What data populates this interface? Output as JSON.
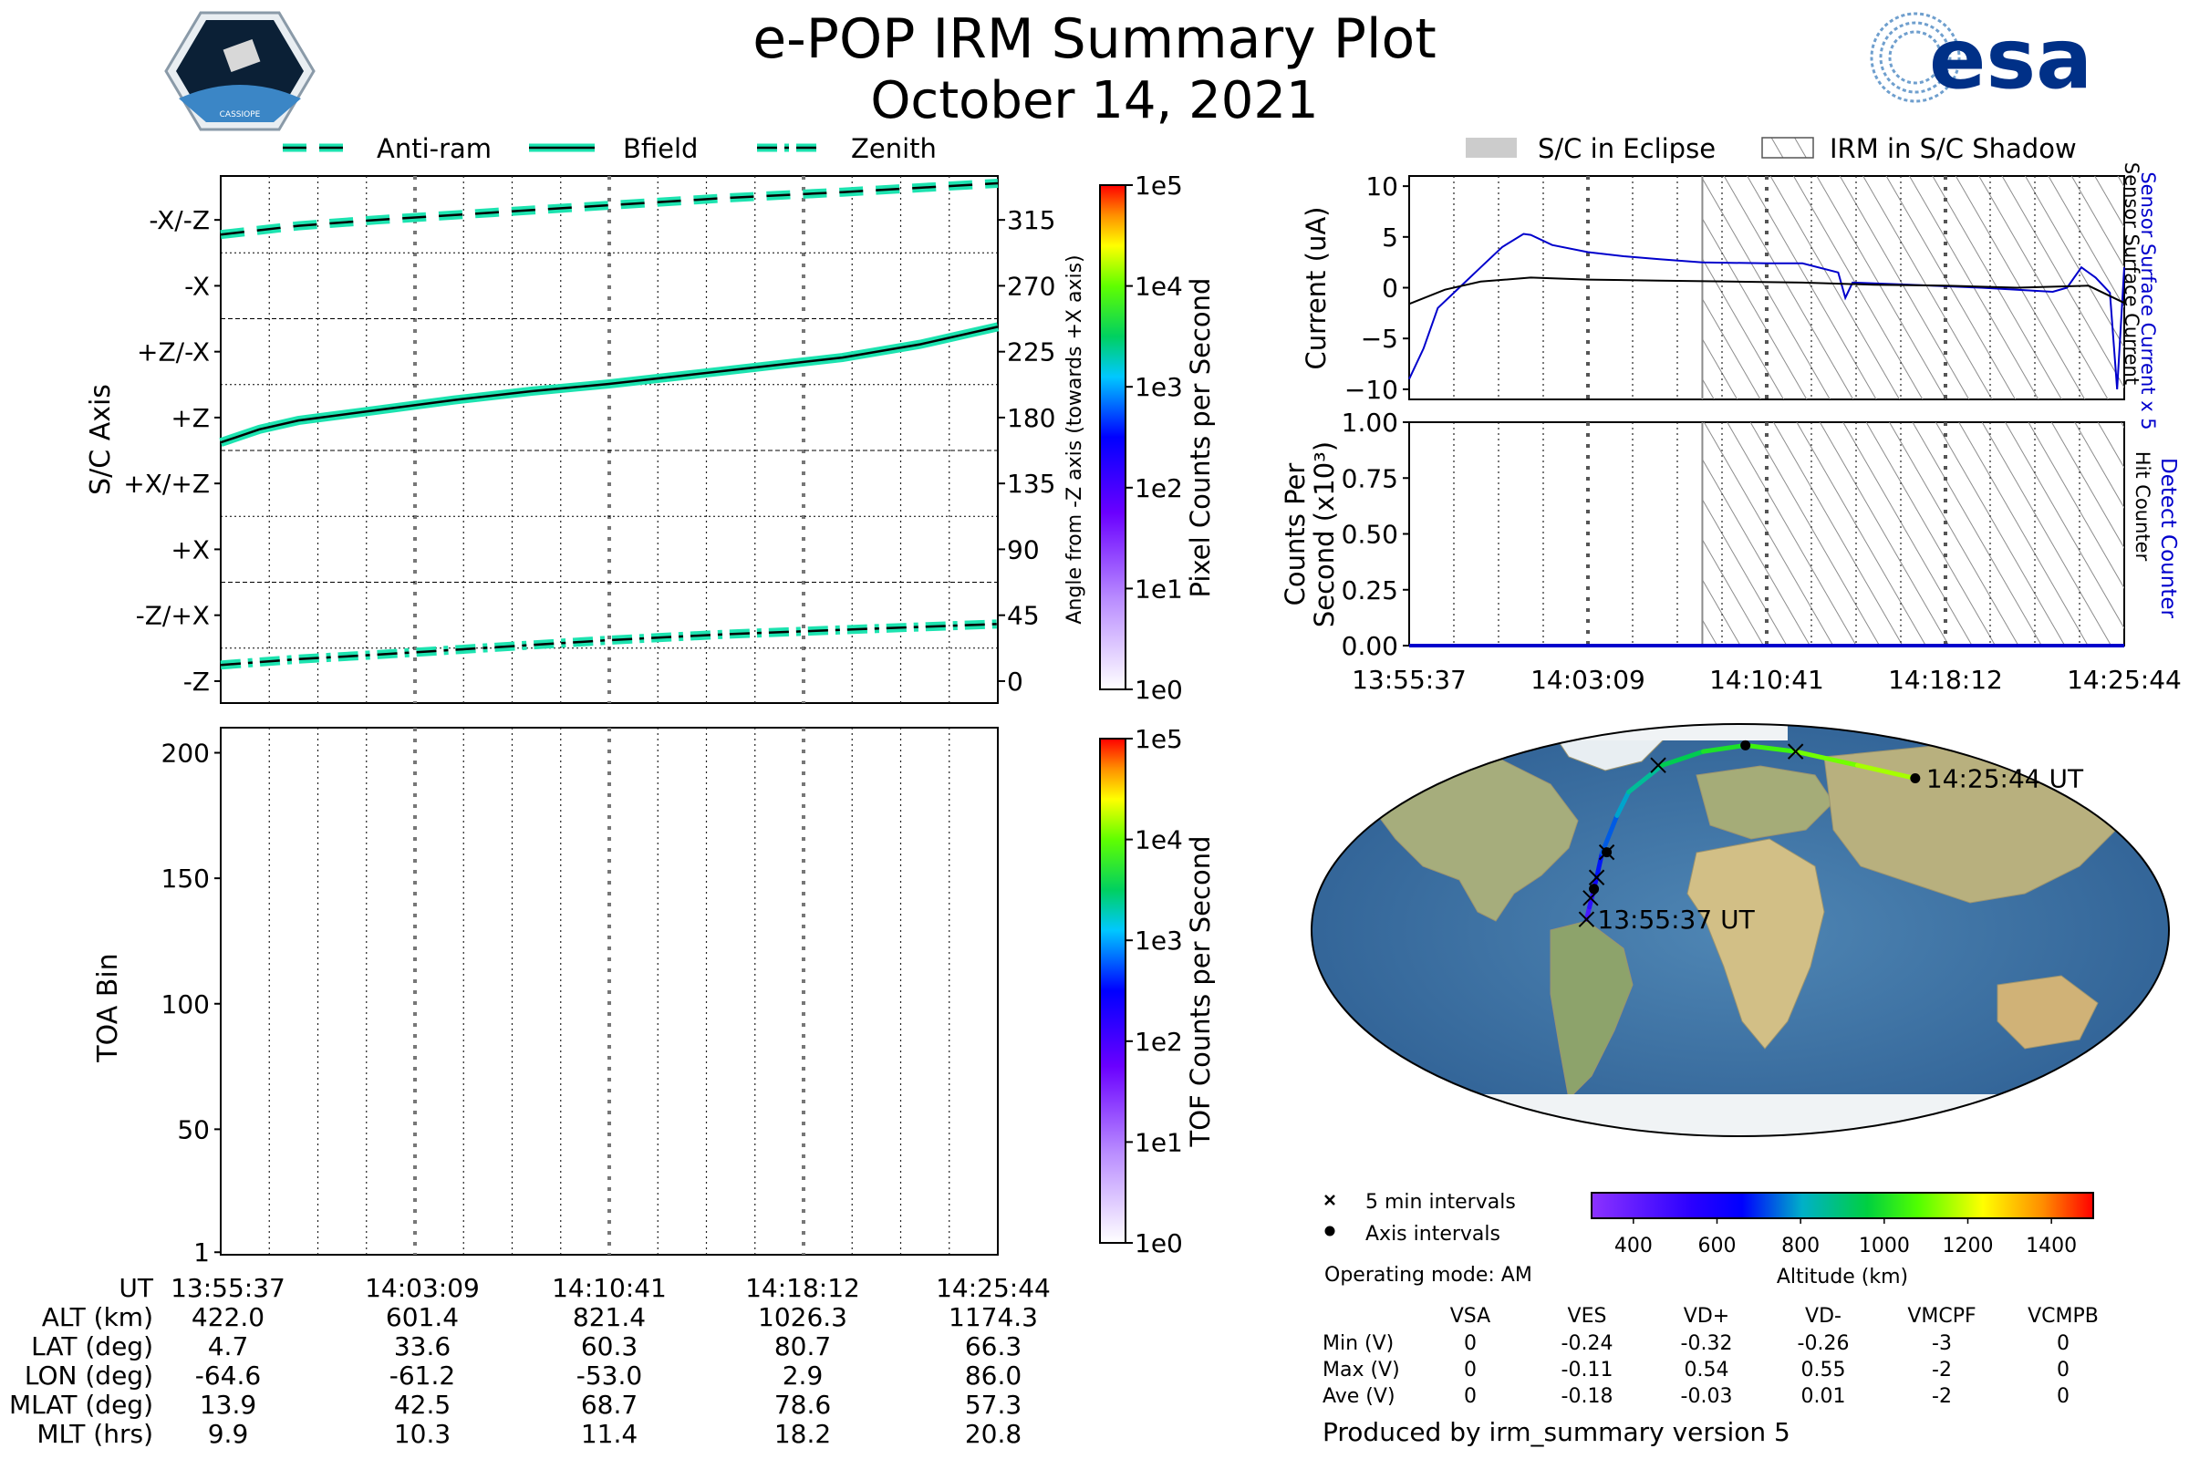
{
  "header": {
    "title": "e-POP IRM Summary Plot",
    "date": "October 14, 2021",
    "logo_left_text": "CASSIOPE",
    "logo_right_text": "esa"
  },
  "legend_top_left": [
    {
      "label": "Anti-ram",
      "style": "dashed"
    },
    {
      "label": "Bfield",
      "style": "solid"
    },
    {
      "label": "Zenith",
      "style": "dashdot"
    }
  ],
  "legend_top_right": [
    {
      "label": "S/C in Eclipse"
    },
    {
      "label": "IRM in S/C Shadow"
    }
  ],
  "colors": {
    "trace_fill": "#1de3b0",
    "sensor_current_x5": "#0000cc",
    "surface_current": "#000000",
    "shadow_hatch": "#8c8c8c",
    "eclipse_gray": "#cccccc"
  },
  "footer": {
    "ut_labels": [
      "UT",
      "ALT (km)",
      "LAT (deg)",
      "LON (deg)",
      "MLAT (deg)",
      "MLT (hrs)"
    ],
    "columns": [
      [
        "13:55:37",
        "422.0",
        "4.7",
        "-64.6",
        "13.9",
        "9.9"
      ],
      [
        "14:03:09",
        "601.4",
        "33.6",
        "-61.2",
        "42.5",
        "10.3"
      ],
      [
        "14:10:41",
        "821.4",
        "60.3",
        "-53.0",
        "68.7",
        "11.4"
      ],
      [
        "14:18:12",
        "1026.3",
        "80.7",
        "2.9",
        "78.6",
        "18.2"
      ],
      [
        "14:25:44",
        "1174.3",
        "66.3",
        "86.0",
        "57.3",
        "20.8"
      ]
    ],
    "map_legend": {
      "five_min": "5 min intervals",
      "axis": "Axis intervals"
    },
    "altitude_colorbar": {
      "label": "Altitude (km)",
      "ticks": [
        "400",
        "600",
        "800",
        "1000",
        "1200",
        "1400"
      ]
    },
    "operating_mode": "Operating mode: AM",
    "voltage_table": {
      "headers": [
        "VSA",
        "VES",
        "VD+",
        "VD-",
        "VMCPF",
        "VCMPB"
      ],
      "rows": [
        {
          "label": "Min (V)",
          "values": [
            "0",
            "-0.24",
            "-0.32",
            "-0.26",
            "-3",
            "0"
          ]
        },
        {
          "label": "Max (V)",
          "values": [
            "0",
            "-0.11",
            "0.54",
            "0.55",
            "-2",
            "0"
          ]
        },
        {
          "label": "Ave (V)",
          "values": [
            "0",
            "-0.18",
            "-0.03",
            "0.01",
            "-2",
            "0"
          ]
        }
      ]
    },
    "produced_by": "Produced by irm_summary version 5"
  },
  "chart_data": [
    {
      "type": "line",
      "panel": "sc_axis",
      "ylabel": "S/C Axis",
      "y2label": "Angle from -Z axis (towards +X axis)",
      "ylim": [
        -15,
        345
      ],
      "ytick_labels": [
        "-X/-Z",
        "-X",
        "+Z/-X",
        "+Z",
        "+X/+Z",
        "+X",
        "-Z/+X",
        "-Z"
      ],
      "y2ticks": [
        0,
        45,
        90,
        135,
        180,
        225,
        270,
        315
      ],
      "x_ticks": [
        "13:55:37",
        "14:03:09",
        "14:10:41",
        "14:18:12",
        "14:25:44"
      ],
      "series": [
        {
          "name": "Anti-ram",
          "x": [
            0,
            0.1,
            0.2,
            0.35,
            0.5,
            0.65,
            0.8,
            1.0
          ],
          "y": [
            305,
            311,
            315,
            320,
            325,
            330,
            334,
            340
          ]
        },
        {
          "name": "Bfield",
          "x": [
            0,
            0.05,
            0.1,
            0.2,
            0.3,
            0.4,
            0.5,
            0.6,
            0.7,
            0.8,
            0.9,
            1.0
          ],
          "y": [
            163,
            172,
            178,
            185,
            192,
            198,
            203,
            209,
            215,
            221,
            230,
            242
          ]
        },
        {
          "name": "Zenith",
          "x": [
            0,
            0.1,
            0.2,
            0.35,
            0.5,
            0.65,
            0.8,
            1.0
          ],
          "y": [
            11,
            15,
            18,
            23,
            28,
            32,
            35,
            39
          ]
        }
      ]
    },
    {
      "type": "heatmap",
      "panel": "pixel_colorbar",
      "label": "Pixel Counts per Second",
      "ticks": [
        "1e0",
        "1e1",
        "1e2",
        "1e3",
        "1e4",
        "1e5"
      ]
    },
    {
      "type": "heatmap",
      "panel": "tof",
      "ylabel": "TOA Bin",
      "ylim": [
        0,
        210
      ],
      "yticks": [
        1,
        50,
        100,
        150,
        200
      ],
      "values": []
    },
    {
      "type": "heatmap",
      "panel": "tof_colorbar",
      "label": "TOF Counts per Second",
      "ticks": [
        "1e0",
        "1e1",
        "1e2",
        "1e3",
        "1e4",
        "1e5"
      ]
    },
    {
      "type": "line",
      "panel": "current",
      "ylabel": "Current (uA)",
      "right_labels": [
        "Sensor Surface Current x 5",
        "Sensor Surface Current"
      ],
      "ylim": [
        -11,
        11
      ],
      "yticks": [
        -10,
        -5,
        0,
        5,
        10
      ],
      "x_ticks": [
        "13:55:37",
        "14:03:09",
        "14:10:41",
        "14:18:12",
        "14:25:44"
      ],
      "shadow_start_fraction": 0.41,
      "series": [
        {
          "name": "Sensor Surface Current x 5",
          "x": [
            0,
            0.02,
            0.04,
            0.07,
            0.1,
            0.13,
            0.16,
            0.17,
            0.2,
            0.25,
            0.3,
            0.35,
            0.41,
            0.5,
            0.55,
            0.6,
            0.61,
            0.62,
            0.7,
            0.8,
            0.9,
            0.92,
            0.94,
            0.96,
            0.98,
            0.99,
            1.0
          ],
          "y": [
            -9,
            -6,
            -2,
            0,
            2,
            4,
            5.3,
            5.2,
            4.2,
            3.5,
            3.1,
            2.8,
            2.5,
            2.4,
            2.4,
            1.5,
            -1,
            0.5,
            0.3,
            0,
            -0.4,
            0,
            2,
            1,
            -0.5,
            -10,
            2
          ]
        },
        {
          "name": "Sensor Surface Current",
          "x": [
            0,
            0.05,
            0.1,
            0.17,
            0.25,
            0.35,
            0.45,
            0.55,
            0.65,
            0.75,
            0.85,
            0.95,
            1.0
          ],
          "y": [
            -1.6,
            -0.2,
            0.6,
            1.0,
            0.8,
            0.7,
            0.6,
            0.5,
            0.3,
            0.2,
            0.0,
            0.2,
            -1.5
          ]
        }
      ]
    },
    {
      "type": "line",
      "panel": "counts",
      "ylabel": "Counts Per Second (x10³)",
      "right_labels": [
        "Detect Counter",
        "Hit Counter"
      ],
      "ylim": [
        0,
        1.0
      ],
      "yticks": [
        "0.00",
        "0.25",
        "0.50",
        "0.75",
        "1.00"
      ],
      "x_ticks": [
        "13:55:37",
        "14:03:09",
        "14:10:41",
        "14:18:12",
        "14:25:44"
      ],
      "shadow_start_fraction": 0.41,
      "series": [
        {
          "name": "Detect Counter",
          "x": [
            0,
            1
          ],
          "y": [
            0,
            0
          ]
        }
      ]
    },
    {
      "type": "scatter",
      "panel": "map",
      "start_label": "13:55:37 UT",
      "end_label": "14:25:44 UT",
      "track_lon": [
        -64.6,
        -63.5,
        -62,
        -61.2,
        -60,
        -56,
        -53.0,
        -40,
        -20,
        2.9,
        30,
        60,
        86.0
      ],
      "track_lat": [
        4.7,
        10,
        18,
        23,
        33.6,
        50,
        60.3,
        72,
        78,
        80.7,
        78,
        72,
        66.3
      ],
      "track_alt": [
        422,
        470,
        540,
        601,
        650,
        760,
        821,
        900,
        980,
        1026,
        1080,
        1140,
        1174
      ],
      "five_min_markers": [
        [
          -64.6,
          4.7
        ],
        [
          -63.2,
          14
        ],
        [
          -61.2,
          23
        ],
        [
          -58,
          34
        ],
        [
          -42,
          72
        ],
        [
          30,
          78
        ]
      ],
      "axis_markers": [
        [
          -62,
          18
        ],
        [
          -58,
          34
        ],
        [
          2.9,
          80.7
        ],
        [
          86,
          66.3
        ]
      ]
    }
  ]
}
